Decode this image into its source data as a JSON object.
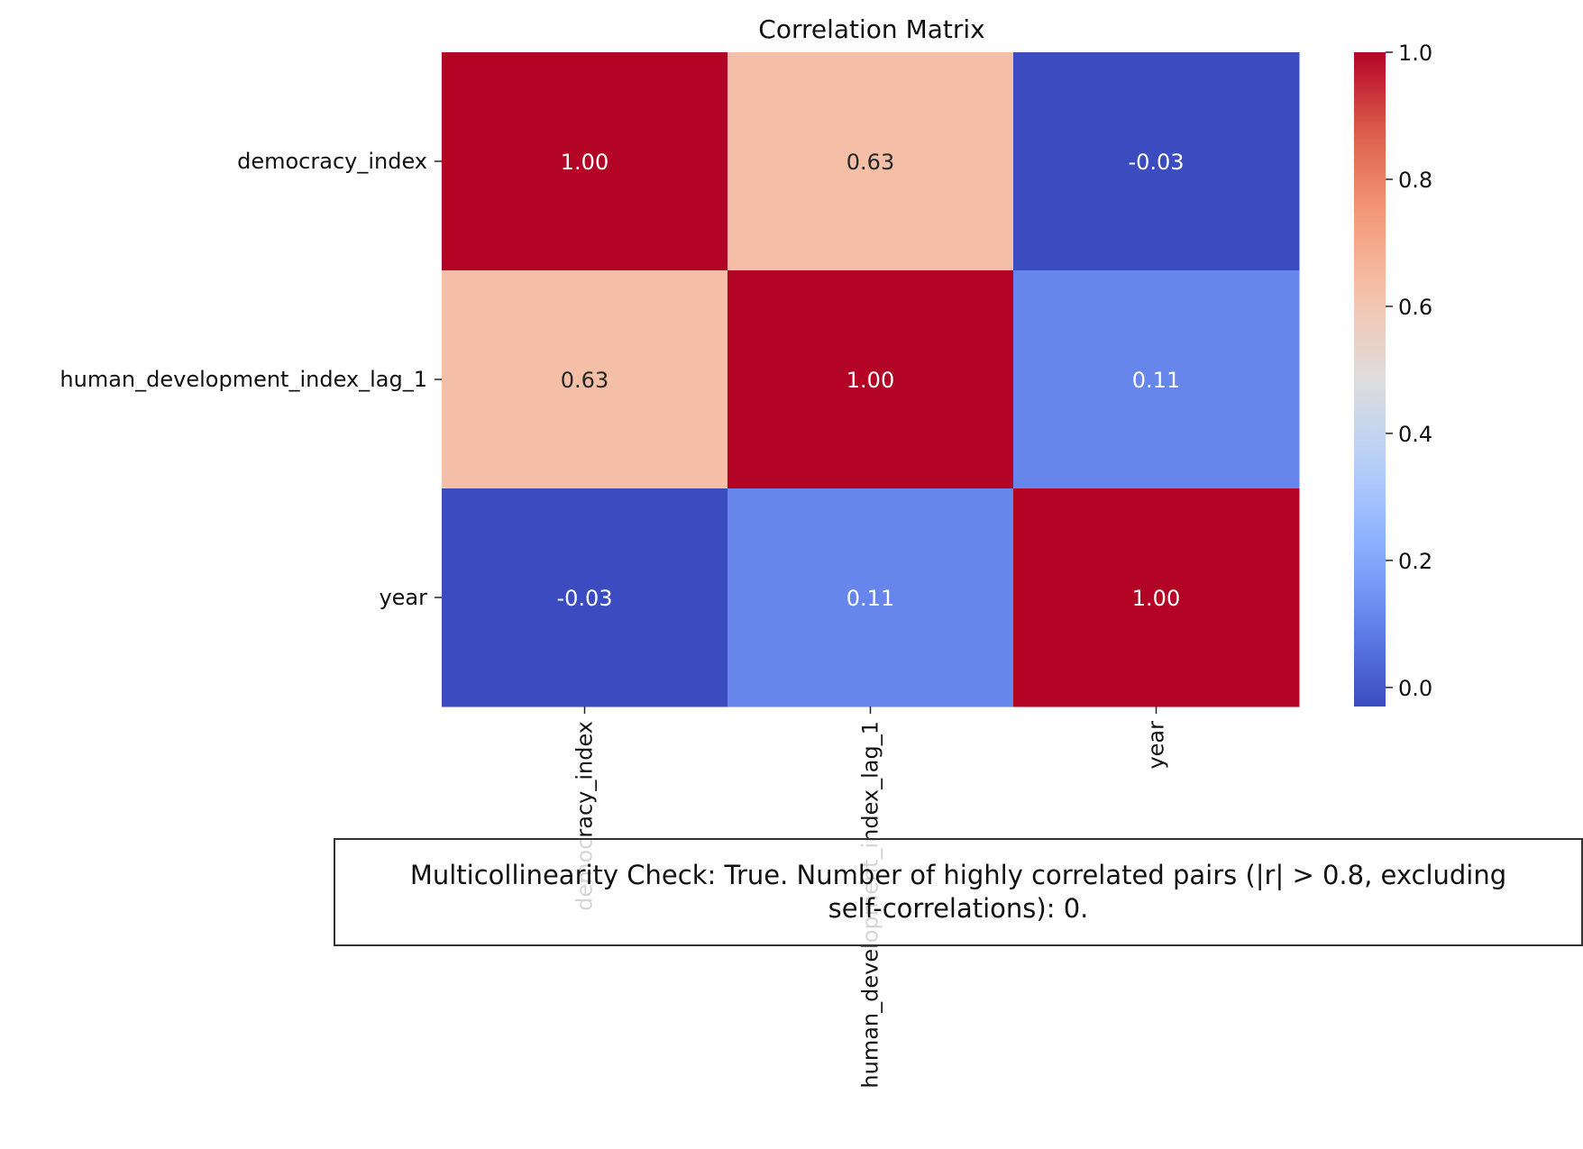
{
  "chart_data": {
    "type": "heatmap",
    "title": "Correlation Matrix",
    "row_labels": [
      "democracy_index",
      "human_development_index_lag_1",
      "year"
    ],
    "col_labels": [
      "democracy_index",
      "human_development_index_lag_1",
      "year"
    ],
    "values": [
      [
        1.0,
        0.63,
        -0.03
      ],
      [
        0.63,
        1.0,
        0.11
      ],
      [
        -0.03,
        0.11,
        1.0
      ]
    ],
    "cell_labels": [
      [
        "1.00",
        "0.63",
        "-0.03"
      ],
      [
        "0.63",
        "1.00",
        "0.11"
      ],
      [
        "-0.03",
        "0.11",
        "1.00"
      ]
    ],
    "colormap": "coolwarm",
    "vmin": -0.03,
    "vmax": 1.0,
    "colorbar_ticks": [
      "0.0",
      "0.2",
      "0.4",
      "0.6",
      "0.8",
      "1.0"
    ],
    "colorbar_tick_values": [
      0.0,
      0.2,
      0.4,
      0.6,
      0.8,
      1.0
    ],
    "legend_placement": "right"
  },
  "annotation": {
    "line1": "Multicollinearity Check: True. Number of highly correlated pairs (|r| > 0.8, excluding",
    "line2": "self-correlations): 0."
  }
}
